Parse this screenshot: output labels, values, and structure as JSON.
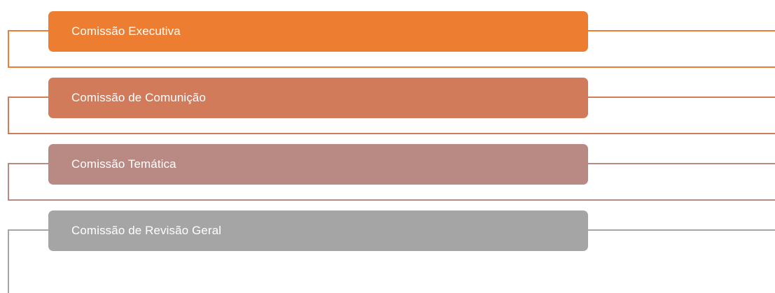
{
  "items": [
    {
      "label": "Comissão Executiva",
      "fill": "#ed7d31",
      "line": "#ed7d31"
    },
    {
      "label": "Comissão de Comunição",
      "fill": "#d27b5a",
      "line": "#d27b5a"
    },
    {
      "label": "Comissão Temática",
      "fill": "#b98a83",
      "line": "#b98a83"
    },
    {
      "label": "Comissão de Revisão Geral",
      "fill": "#a5a5a5",
      "line": "#a5a5a5"
    }
  ]
}
